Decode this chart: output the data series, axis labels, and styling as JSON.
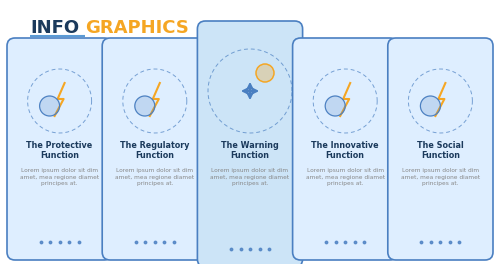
{
  "title_info": "INFO",
  "title_graphics": "GRAPHICS",
  "title_color_info": "#1b3a5c",
  "title_color_graphics": "#f5a623",
  "title_underline_color": "#5b9bd5",
  "bg_color": "#ffffff",
  "card_bg_normal": "#deeeff",
  "card_bg_highlighted": "#cce4f7",
  "card_border": "#4a7fc1",
  "connector_color": "#4a7fc1",
  "dot_color": "#4a7fc1",
  "title_text_color": "#1b3a5c",
  "body_text_color": "#888888",
  "cards": [
    {
      "title": "The Protective\nFunction",
      "body": "Lorem ipsum dolor sit dim\namet, mea regione diamet\nprincipes at.",
      "dots": 5,
      "highlighted": false,
      "col": 0
    },
    {
      "title": "The Regulatory\nFunction",
      "body": "Lorem ipsum dolor sit dim\namet, mea regione diamet\nprincipes at.",
      "dots": 5,
      "highlighted": false,
      "col": 1
    },
    {
      "title": "The Warning\nFunction",
      "body": "Lorem ipsum dolor sit dim\namet, mea regione diamet\nprincipes at.",
      "dots": 5,
      "highlighted": true,
      "col": 2
    },
    {
      "title": "The Innovative\nFunction",
      "body": "Lorem ipsum dolor sit dim\namet, mea regione diamet\nprincipes at.",
      "dots": 5,
      "highlighted": false,
      "col": 3
    },
    {
      "title": "The Social\nFunction",
      "body": "Lorem ipsum dolor sit dim\namet, mea regione diamet\nprincipes at.",
      "dots": 5,
      "highlighted": false,
      "col": 4
    }
  ]
}
